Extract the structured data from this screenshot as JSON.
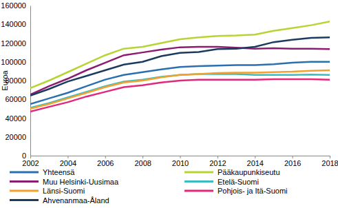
{
  "chart_data": {
    "type": "line",
    "y_label": "Euroa",
    "x": [
      2002,
      2003,
      2004,
      2005,
      2006,
      2007,
      2008,
      2009,
      2010,
      2011,
      2012,
      2013,
      2014,
      2015,
      2016,
      2017,
      2018
    ],
    "xlim": [
      2002,
      2018
    ],
    "xticks": [
      2002,
      2004,
      2006,
      2008,
      2010,
      2012,
      2014,
      2016,
      2018
    ],
    "ylim": [
      0,
      160000
    ],
    "yticks": [
      0,
      20000,
      40000,
      60000,
      80000,
      100000,
      120000,
      140000,
      160000
    ],
    "grid": false,
    "legend": "bottom",
    "series": [
      {
        "name": "Yhteensä",
        "color": "#2a6fb0",
        "values": [
          55000,
          61000,
          67000,
          74000,
          81000,
          86000,
          89000,
          92000,
          94500,
          95500,
          96000,
          96500,
          96500,
          97500,
          99000,
          100000,
          100000
        ]
      },
      {
        "name": "Pääkaupunkiseutu",
        "color": "#b7d433",
        "values": [
          72000,
          80000,
          89000,
          98000,
          107000,
          114000,
          116000,
          120000,
          124000,
          126000,
          127500,
          128000,
          129000,
          133000,
          136000,
          139000,
          143000
        ]
      },
      {
        "name": "Muu Helsinki-Uusimaa",
        "color": "#8c1c70",
        "values": [
          65000,
          74000,
          82000,
          91000,
          99000,
          107000,
          110000,
          113000,
          115500,
          116000,
          116000,
          115000,
          114000,
          114500,
          114000,
          114000,
          113500
        ]
      },
      {
        "name": "Etelä-Suomi",
        "color": "#3cbcc0",
        "values": [
          51000,
          56000,
          62000,
          68000,
          74000,
          79000,
          81000,
          84000,
          86000,
          87000,
          87000,
          87000,
          86000,
          86000,
          86000,
          86500,
          86000
        ]
      },
      {
        "name": "Länsi-Suomi",
        "color": "#f2a12e",
        "values": [
          50000,
          55000,
          61000,
          67000,
          73000,
          78000,
          80000,
          83500,
          86000,
          87000,
          88000,
          88500,
          88500,
          89000,
          89500,
          90500,
          91000
        ]
      },
      {
        "name": "Pohjois- ja Itä-Suomi",
        "color": "#e0297c",
        "values": [
          47000,
          52000,
          57000,
          63000,
          68000,
          73000,
          75000,
          78000,
          80000,
          81000,
          81000,
          81000,
          81000,
          81500,
          81500,
          81500,
          81000
        ]
      },
      {
        "name": "Ahvenanmaa-Åland",
        "color": "#1c3a5e",
        "values": [
          64000,
          71000,
          79000,
          85000,
          91000,
          97000,
          100000,
          106000,
          109500,
          110500,
          113500,
          114000,
          116000,
          121000,
          123500,
          125500,
          126000
        ]
      }
    ]
  }
}
